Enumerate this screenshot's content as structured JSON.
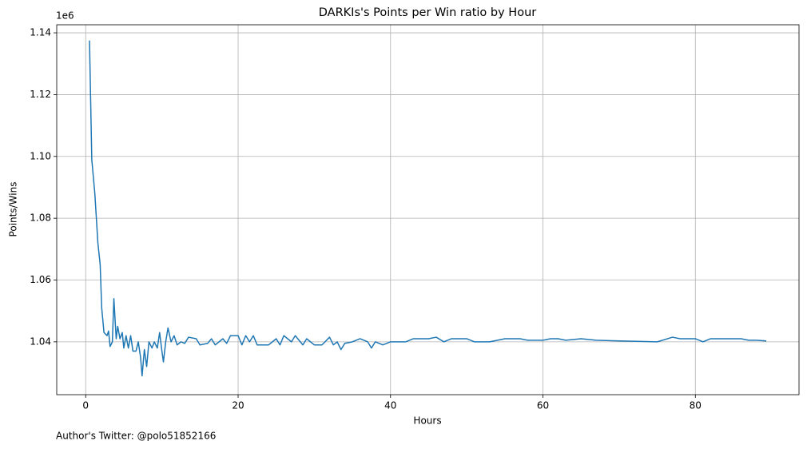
{
  "chart_data": {
    "type": "line",
    "title": "DARKIs's Points per Win ratio by Hour",
    "xlabel": "Hours",
    "ylabel": "Points/Wins",
    "y_offset_label": "1e6",
    "footnote": "Author's Twitter: @polo51852166",
    "x": [
      0.5,
      0.8,
      1.2,
      1.6,
      1.9,
      2.1,
      2.4,
      2.8,
      3.0,
      3.2,
      3.5,
      3.7,
      4.0,
      4.2,
      4.5,
      4.8,
      5.0,
      5.3,
      5.6,
      5.9,
      6.2,
      6.6,
      6.9,
      7.2,
      7.4,
      7.7,
      8.0,
      8.3,
      8.7,
      9.0,
      9.4,
      9.7,
      10.0,
      10.2,
      10.5,
      10.8,
      11.2,
      11.6,
      12.0,
      12.5,
      13.0,
      13.5,
      14.5,
      15.0,
      16.0,
      16.5,
      17.0,
      18.0,
      18.5,
      19.0,
      20.0,
      20.5,
      21.0,
      21.5,
      22.0,
      22.5,
      24.0,
      25.0,
      25.5,
      26.0,
      27.0,
      27.5,
      28.5,
      29.0,
      30.0,
      31.0,
      32.0,
      32.5,
      33.0,
      33.5,
      34.0,
      35.0,
      36.0,
      37.0,
      37.5,
      38.0,
      39.0,
      40.0,
      42.0,
      43.0,
      45.0,
      46.0,
      47.0,
      48.0,
      50.0,
      51.0,
      53.0,
      55.0,
      57.0,
      58.0,
      60.0,
      61.0,
      62.0,
      63.0,
      65.0,
      67.0,
      75.0,
      77.0,
      78.0,
      80.0,
      81.0,
      82.0,
      84.0,
      86.0,
      87.0,
      88.0,
      89.3
    ],
    "series": [
      {
        "name": "Points/Wins",
        "color": "#1f77b4",
        "values": [
          1.1375,
          1.099,
          1.088,
          1.072,
          1.065,
          1.051,
          1.043,
          1.042,
          1.0435,
          1.0385,
          1.04,
          1.054,
          1.041,
          1.045,
          1.041,
          1.043,
          1.038,
          1.042,
          1.038,
          1.042,
          1.037,
          1.037,
          1.04,
          1.035,
          1.029,
          1.0375,
          1.032,
          1.04,
          1.038,
          1.04,
          1.038,
          1.043,
          1.037,
          1.0335,
          1.04,
          1.0445,
          1.04,
          1.042,
          1.039,
          1.04,
          1.0395,
          1.0415,
          1.041,
          1.039,
          1.0395,
          1.041,
          1.039,
          1.041,
          1.0395,
          1.042,
          1.042,
          1.039,
          1.042,
          1.04,
          1.042,
          1.039,
          1.039,
          1.041,
          1.039,
          1.042,
          1.04,
          1.042,
          1.039,
          1.041,
          1.039,
          1.039,
          1.0415,
          1.039,
          1.04,
          1.0375,
          1.0395,
          1.04,
          1.041,
          1.04,
          1.038,
          1.04,
          1.039,
          1.04,
          1.04,
          1.041,
          1.041,
          1.0415,
          1.04,
          1.041,
          1.041,
          1.04,
          1.04,
          1.041,
          1.041,
          1.0405,
          1.0405,
          1.041,
          1.041,
          1.0405,
          1.041,
          1.0405,
          1.04,
          1.0415,
          1.041,
          1.041,
          1.04,
          1.041,
          1.041,
          1.041,
          1.0405,
          1.0405,
          1.0403
        ]
      }
    ],
    "xlim": [
      -3.8,
      93.6
    ],
    "xticks": [
      0,
      20,
      40,
      60,
      80
    ],
    "ylim": [
      1.0229,
      1.1426
    ],
    "yticks": [
      1.04,
      1.06,
      1.08,
      {
        "value": 1.1,
        "label": "1.10"
      },
      1.12,
      1.14
    ],
    "grid": true
  }
}
